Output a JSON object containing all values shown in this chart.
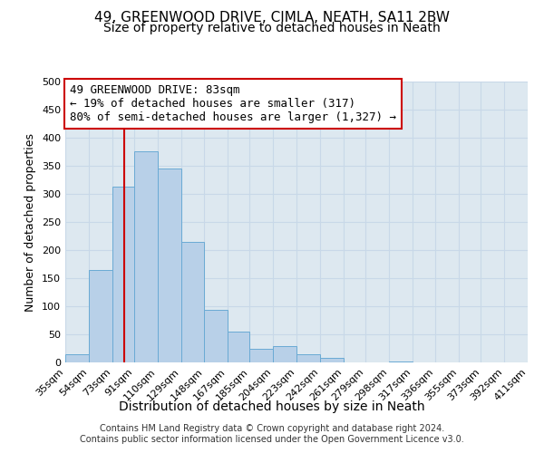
{
  "title": "49, GREENWOOD DRIVE, CIMLA, NEATH, SA11 2BW",
  "subtitle": "Size of property relative to detached houses in Neath",
  "xlabel": "Distribution of detached houses by size in Neath",
  "ylabel": "Number of detached properties",
  "bin_edges": [
    35,
    54,
    73,
    91,
    110,
    129,
    148,
    167,
    185,
    204,
    223,
    242,
    261,
    279,
    298,
    317,
    336,
    355,
    373,
    392,
    411
  ],
  "bar_heights": [
    15,
    165,
    313,
    375,
    345,
    215,
    93,
    55,
    25,
    29,
    14,
    8,
    0,
    0,
    1,
    0,
    0,
    0,
    0,
    0
  ],
  "bar_color": "#b8d0e8",
  "bar_edge_color": "#6aaad4",
  "red_line_x": 83,
  "annotation_title": "49 GREENWOOD DRIVE: 83sqm",
  "annotation_line2": "← 19% of detached houses are smaller (317)",
  "annotation_line3": "80% of semi-detached houses are larger (1,327) →",
  "annotation_box_color": "#cc0000",
  "ylim": [
    0,
    500
  ],
  "yticks": [
    0,
    50,
    100,
    150,
    200,
    250,
    300,
    350,
    400,
    450,
    500
  ],
  "plot_bg_color": "#dde8f0",
  "background_color": "#ffffff",
  "grid_color": "#c8d8e8",
  "footer_line1": "Contains HM Land Registry data © Crown copyright and database right 2024.",
  "footer_line2": "Contains public sector information licensed under the Open Government Licence v3.0.",
  "title_fontsize": 11,
  "subtitle_fontsize": 10,
  "xlabel_fontsize": 10,
  "ylabel_fontsize": 9,
  "tick_fontsize": 8,
  "annotation_fontsize": 9,
  "footer_fontsize": 7
}
